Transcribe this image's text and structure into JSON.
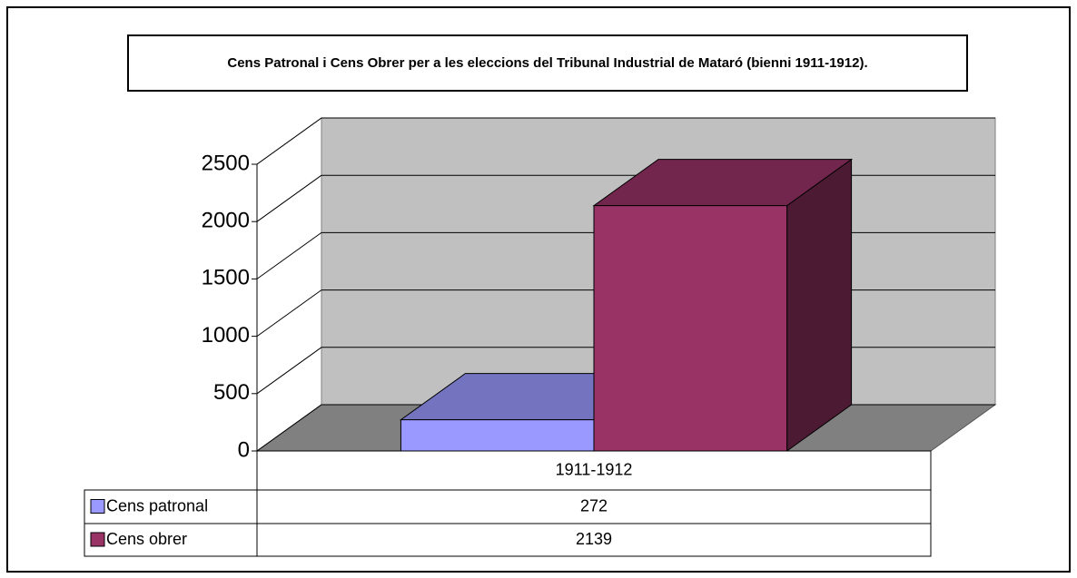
{
  "chart_data": {
    "type": "bar3d",
    "title": "Cens Patronal i Cens Obrer per a les eleccions del Tribunal Industrial de Mataró (bienni 1911-1912).",
    "categories": [
      "1911-1912"
    ],
    "series": [
      {
        "name": "Cens patronal",
        "color": "#9999ff",
        "values": [
          272
        ]
      },
      {
        "name": "Cens obrer",
        "color": "#993366",
        "values": [
          2139
        ]
      }
    ],
    "ylim": [
      0,
      2500
    ],
    "yticks": [
      0,
      500,
      1000,
      1500,
      2000,
      2500
    ],
    "grid": true
  }
}
